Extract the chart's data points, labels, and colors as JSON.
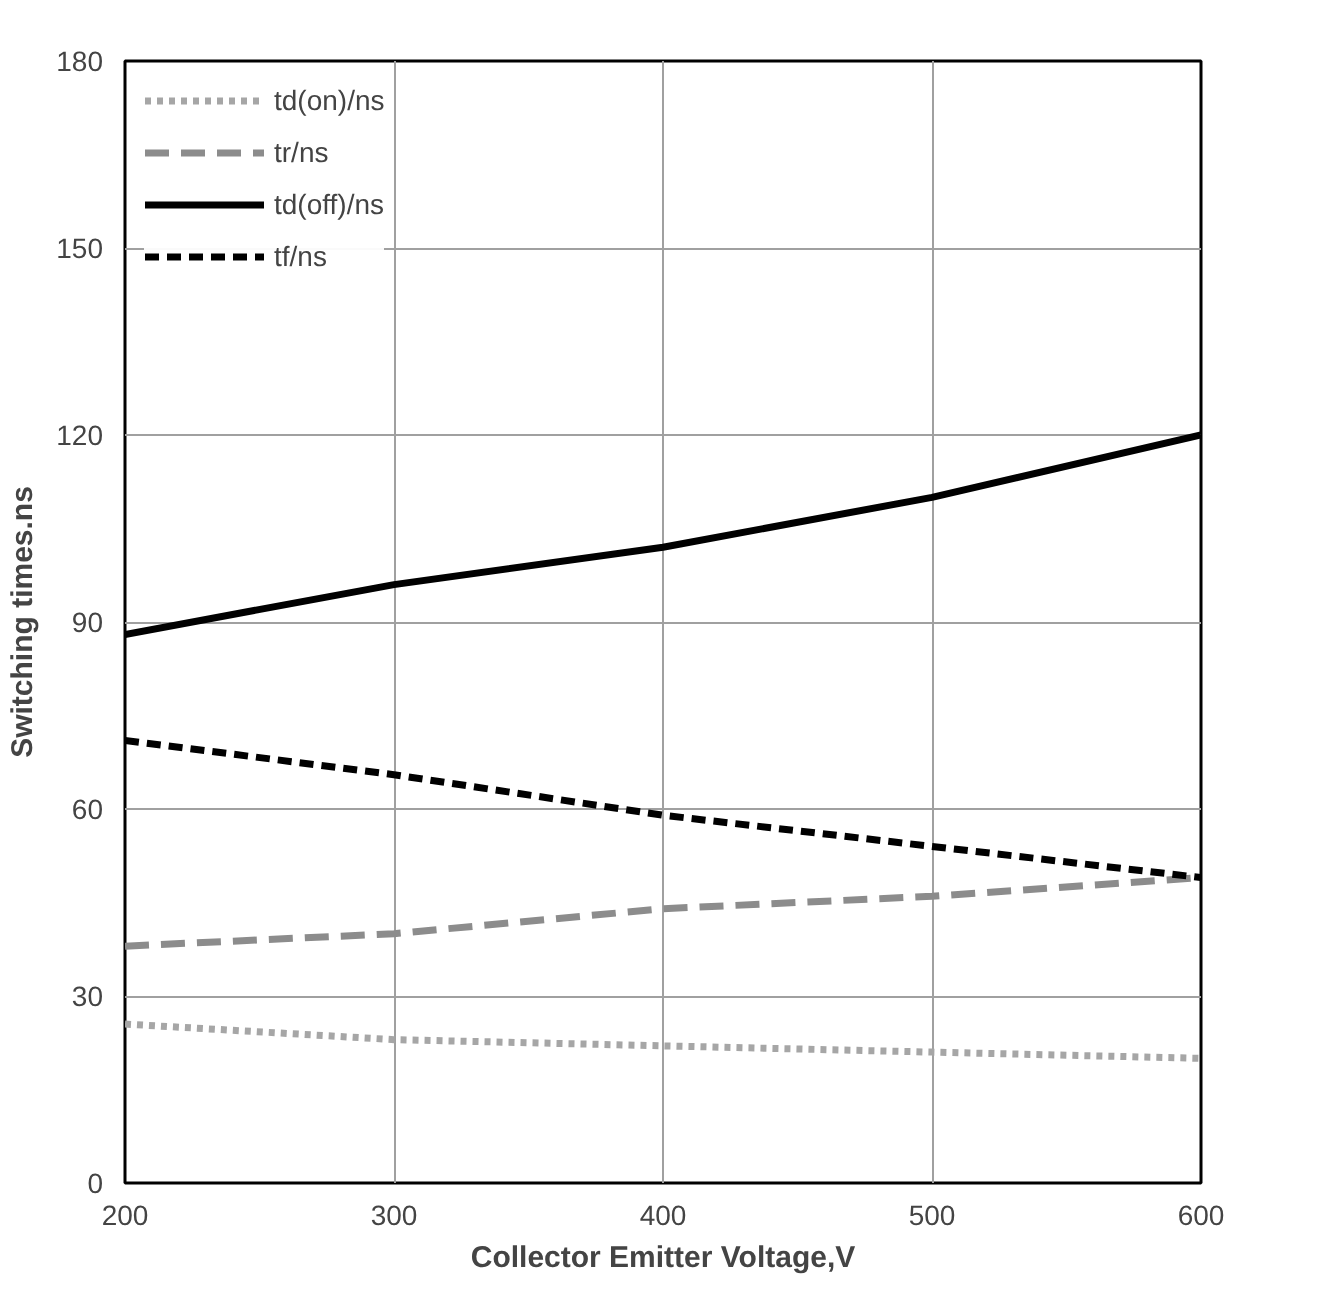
{
  "chart_data": {
    "type": "line",
    "xlabel": "Collector Emitter Voltage,V",
    "ylabel": "Switching times.ns",
    "x": [
      200,
      300,
      400,
      500,
      600
    ],
    "series": [
      {
        "name": "td(on)/ns",
        "color": "#a6a6a6",
        "line_style": "dotted",
        "values": [
          25.5,
          23,
          22,
          21,
          20
        ]
      },
      {
        "name": "tr/ns",
        "color": "#8c8c8c",
        "line_style": "dashed",
        "values": [
          38,
          40,
          44,
          46,
          49
        ]
      },
      {
        "name": "td(off)/ns",
        "color": "#000000",
        "line_style": "solid",
        "values": [
          88,
          96,
          102,
          110,
          120
        ]
      },
      {
        "name": "tf/ns",
        "color": "#000000",
        "line_style": "dashed",
        "values": [
          71,
          65.5,
          59,
          54,
          49
        ]
      }
    ],
    "xlim": [
      200,
      600
    ],
    "ylim": [
      0,
      180
    ],
    "xticks": [
      200,
      300,
      400,
      500,
      600
    ],
    "yticks": [
      0,
      30,
      60,
      90,
      120,
      150,
      180
    ],
    "grid": true,
    "legend": "top left",
    "marker": "none"
  }
}
